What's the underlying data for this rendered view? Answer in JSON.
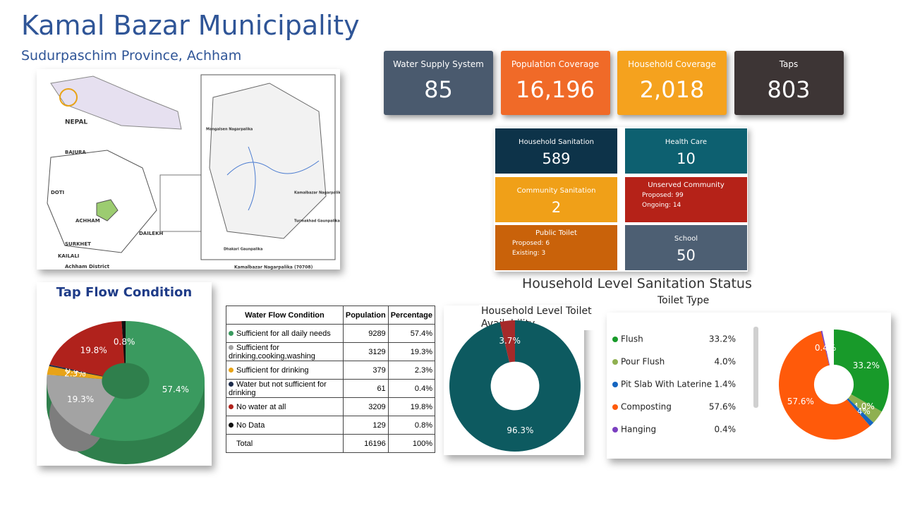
{
  "header": {
    "title": "Kamal Bazar Municipality",
    "subtitle": "Sudurpaschim Province, Achham"
  },
  "kpis": [
    {
      "label": "Water Supply System",
      "value": "85"
    },
    {
      "label": "Population Coverage",
      "value": "16,196"
    },
    {
      "label": "Household Coverage",
      "value": "2,018"
    },
    {
      "label": "Taps",
      "value": "803"
    }
  ],
  "sanitation_tiles": [
    {
      "label": "Household Sanitation",
      "value": "589"
    },
    {
      "label": "Health Care",
      "value": "10"
    },
    {
      "label": "Community Sanitation",
      "value": "2"
    },
    {
      "label": "Unserved Community",
      "lines": [
        "Proposed: 99",
        "Ongoing: 14"
      ]
    },
    {
      "label": "Public Toilet",
      "lines": [
        "Proposed: 6",
        "Existing: 3"
      ]
    },
    {
      "label": "School",
      "value": "50"
    }
  ],
  "map": {
    "labels": [
      "NEPAL",
      "BAJURA",
      "DOTI",
      "ACHHAM",
      "DAILEKH",
      "SURKHET",
      "KAILALI",
      "Achham District",
      "Mangalsen Nagarpalika",
      "Kamalbazar Nagarpalika",
      "Turmakhad Gaunpalika",
      "Dhakari Gaunpalika",
      "Kamalbazar Nagarpalika (70708)"
    ]
  },
  "section_title": "Household Level Sanitation Status",
  "table": {
    "header": [
      "Water Flow Condition",
      "Population",
      "Percentage"
    ],
    "rows": [
      [
        "Sufficient for all daily needs",
        "9289",
        "57.4%"
      ],
      [
        "Sufficient for drinking,cooking,washing",
        "3129",
        "19.3%"
      ],
      [
        "Sufficient for drinking",
        "379",
        "2.3%"
      ],
      [
        "Water but not sufficient for drinking",
        "61",
        "0.4%"
      ],
      [
        "No water at all",
        "3209",
        "19.8%"
      ],
      [
        "No Data",
        "129",
        "0.8%"
      ],
      [
        "Total",
        "16196",
        "100%"
      ]
    ]
  },
  "chart_data": [
    {
      "type": "pie",
      "title": "Tap Flow Condition",
      "values": [
        57.4,
        19.3,
        2.3,
        0.4,
        19.8,
        0.8
      ],
      "value_labels": [
        "57.4%",
        "19.3%",
        "2.3%",
        "0.4%",
        "19.8%",
        "0.8%"
      ],
      "colors": [
        "#3a9a5f",
        "#a3a3a3",
        "#e8a317",
        "#1c2b4a",
        "#b0221c",
        "#111111"
      ]
    },
    {
      "type": "pie",
      "title": "Household Level Toilet Availability",
      "values": [
        96.3,
        3.7
      ],
      "value_labels": [
        "96.3%",
        "3.7%"
      ],
      "colors": [
        "#0d5a60",
        "#a52a2a"
      ]
    },
    {
      "type": "pie",
      "title": "Toilet Type",
      "categories": [
        "Flush",
        "Pour Flush",
        "Pit Slab With Laterine",
        "Composting",
        "Hanging"
      ],
      "values": [
        33.2,
        4,
        1.4,
        57.6,
        0.4
      ],
      "value_labels": [
        "33.2%",
        "4.0%",
        "1.4%",
        "57.6%",
        "0.4%"
      ],
      "colors": [
        "#189a2a",
        "#8fb050",
        "#1565c0",
        "#ff5a0a",
        "#7b3fc0"
      ]
    }
  ]
}
